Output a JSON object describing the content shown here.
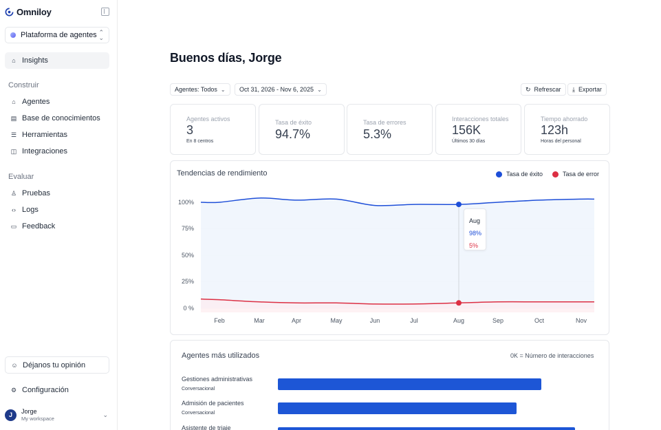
{
  "brand": {
    "name": "Omniloy"
  },
  "platform_selector": {
    "value": "Plataforma de agentes"
  },
  "nav": {
    "insights": "Insights",
    "section_build": "Construir",
    "build_items": [
      "Agentes",
      "Base de conocimientos",
      "Herramientas",
      "Integraciones"
    ],
    "section_evaluate": "Evaluar",
    "evaluate_items": [
      "Pruebas",
      "Logs",
      "Feedback"
    ],
    "feedback_button": "Déjanos tu opinión",
    "settings": "Configuración"
  },
  "user": {
    "initial": "J",
    "name": "Jorge",
    "workspace": "My workspace"
  },
  "greeting": "Buenos días, Jorge",
  "filters": {
    "agents": "Agentes: Todos",
    "date_range": "Oct 31, 2026 - Nov 6, 2025",
    "refresh": "Refrescar",
    "export": "Exportar"
  },
  "kpis": [
    {
      "label": "Agentes activos",
      "value": "3",
      "sub": "En 8 centros"
    },
    {
      "label": "Tasa de éxito",
      "value": "94.7%",
      "sub": ""
    },
    {
      "label": "Tasa de errores",
      "value": "5.3%",
      "sub": ""
    },
    {
      "label": "Interacciones totales",
      "value": "156K",
      "sub": "Últimos 30 días"
    },
    {
      "label": "Tiempo ahorrado",
      "value": "123h",
      "sub": "Horas del personal"
    }
  ],
  "chart_data": {
    "type": "line",
    "title": "Tendencias de rendimiento",
    "categories": [
      "Feb",
      "Mar",
      "Apr",
      "May",
      "Jun",
      "Jul",
      "Aug",
      "Sep",
      "Oct",
      "Nov"
    ],
    "y_ticks": [
      "100%",
      "75%",
      "50%",
      "25%",
      "0 %"
    ],
    "ylim": [
      0,
      100
    ],
    "series": [
      {
        "name": "Tasa de éxito",
        "color": "#1d4ed8",
        "values": [
          100,
          104,
          102,
          103,
          97,
          98,
          98,
          100,
          102,
          103
        ]
      },
      {
        "name": "Tasa de error",
        "color": "#dc2f43",
        "values": [
          8,
          6,
          5,
          5,
          4,
          4,
          5,
          6,
          6,
          6
        ]
      }
    ],
    "legend_position": "top-right",
    "tooltip": {
      "label": "Aug",
      "success": "98%",
      "error": "5%"
    }
  },
  "top_agents": {
    "title": "Agentes más utilizados",
    "note": "0K = Número de interacciones",
    "items": [
      {
        "name": "Gestiones administrativas",
        "type": "Conversacional",
        "share": 0.86
      },
      {
        "name": "Admisión de pacientes",
        "type": "Conversacional",
        "share": 0.78
      },
      {
        "name": "Asistente de triaje",
        "type": "",
        "share": 0.97
      }
    ]
  }
}
